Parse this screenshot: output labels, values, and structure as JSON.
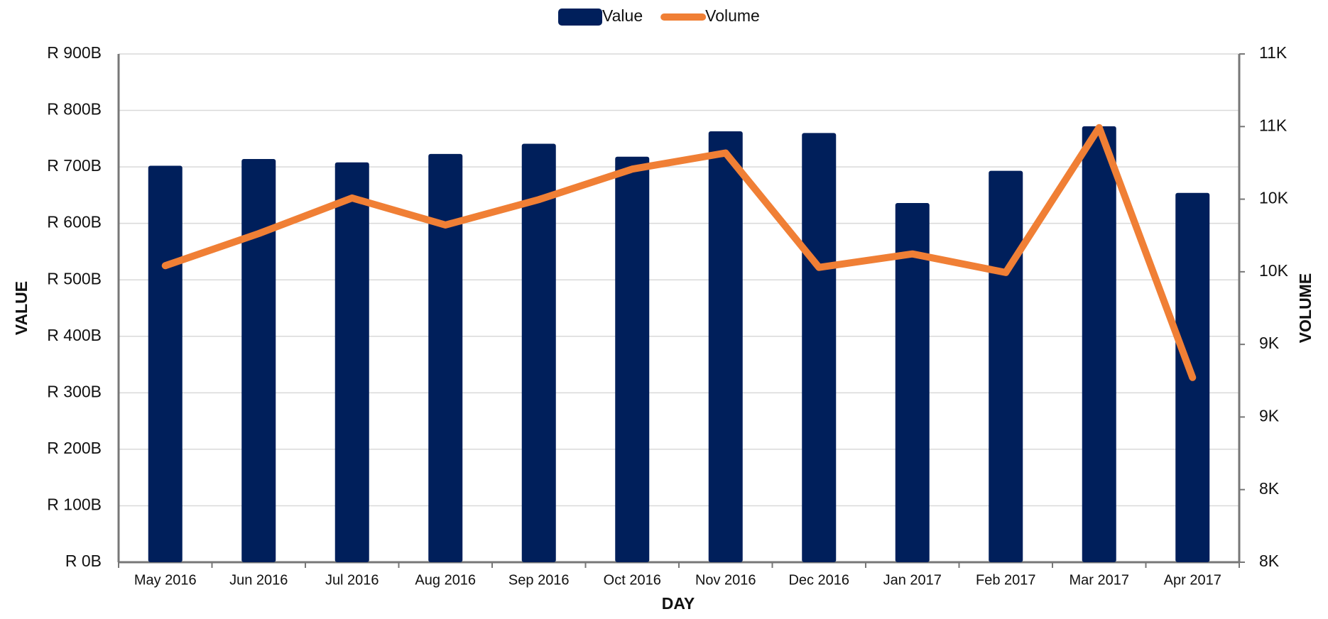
{
  "chart_data": {
    "type": "bar_line",
    "x_label": "DAY",
    "y_label": "VALUE",
    "y2_label": "VOLUME",
    "categories": [
      "May 2016",
      "Jun 2016",
      "Jul 2016",
      "Aug 2016",
      "Sep 2016",
      "Oct 2016",
      "Nov 2016",
      "Dec 2016",
      "Jan 2017",
      "Feb 2017",
      "Mar 2017",
      "Apr 2017"
    ],
    "series": [
      {
        "name": "Value",
        "type": "bar",
        "color": "#001f5b",
        "values": [
          702,
          714,
          708,
          723,
          741,
          718,
          763,
          760,
          636,
          693,
          772,
          654
        ]
      },
      {
        "name": "Volume",
        "type": "line",
        "axis": "y2",
        "color": "#f07f35",
        "values": [
          10042,
          10263,
          10508,
          10322,
          10497,
          10707,
          10818,
          10030,
          10123,
          9995,
          10993,
          9272
        ]
      }
    ],
    "ylim": [
      0,
      900
    ],
    "yticks": [
      {
        "value": 0,
        "label": "R 0B"
      },
      {
        "value": 100,
        "label": "R 100B"
      },
      {
        "value": 200,
        "label": "R 200B"
      },
      {
        "value": 300,
        "label": "R 300B"
      },
      {
        "value": 400,
        "label": "R 400B"
      },
      {
        "value": 500,
        "label": "R 500B"
      },
      {
        "value": 600,
        "label": "R 600B"
      },
      {
        "value": 700,
        "label": "R 700B"
      },
      {
        "value": 800,
        "label": "R 800B"
      },
      {
        "value": 900,
        "label": "R 900B"
      }
    ],
    "y2lim": [
      8000,
      11500
    ],
    "y2ticks": [
      {
        "value": 8000,
        "label": "8K"
      },
      {
        "value": 8500,
        "label": "8K"
      },
      {
        "value": 9000,
        "label": "9K"
      },
      {
        "value": 9500,
        "label": "9K"
      },
      {
        "value": 10000,
        "label": "10K"
      },
      {
        "value": 10500,
        "label": "10K"
      },
      {
        "value": 11000,
        "label": "11K"
      },
      {
        "value": 11500,
        "label": "11K"
      }
    ],
    "grid": true,
    "legend": "top"
  }
}
